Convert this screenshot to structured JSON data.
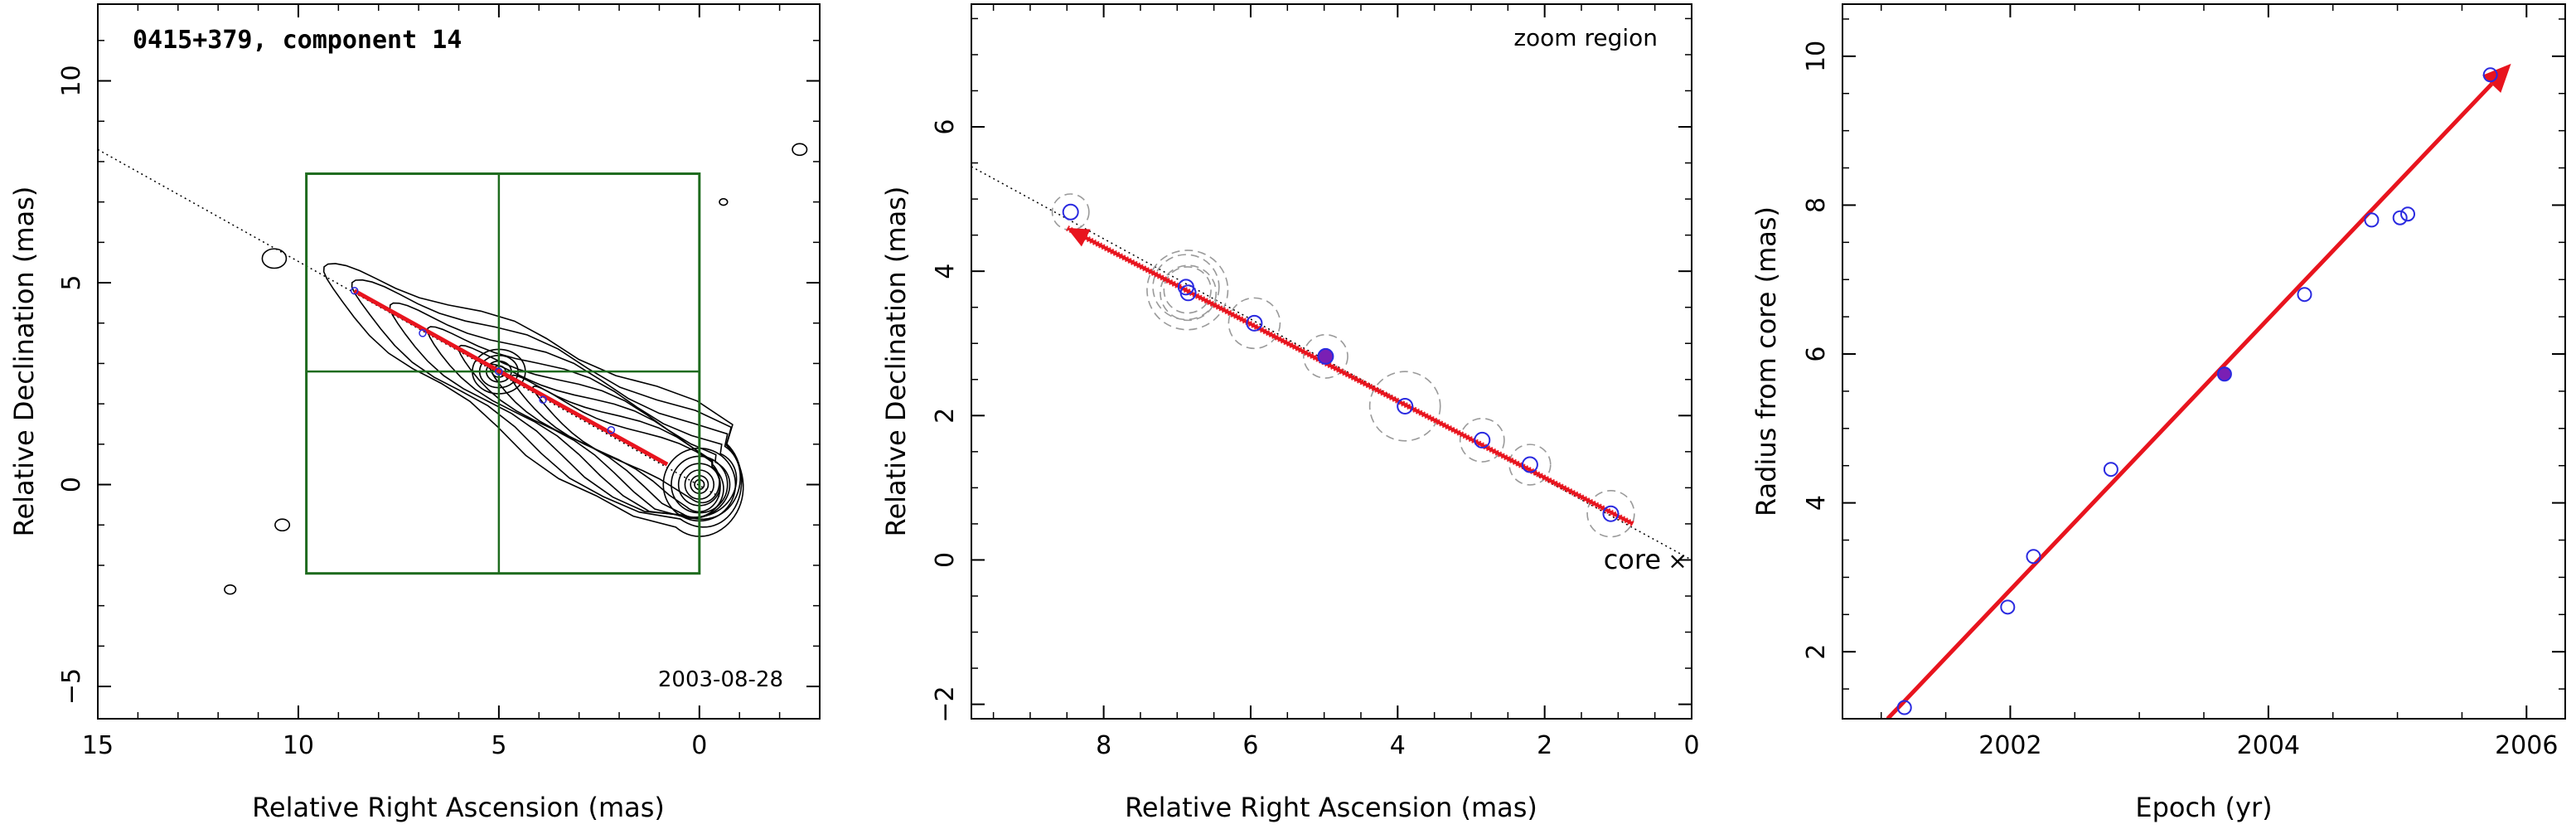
{
  "chart_data": [
    {
      "type": "contour",
      "title": "0415+379, component 14",
      "date_label": "2003-08-28",
      "xlabel": "Relative Right Ascension (mas)",
      "ylabel": "Relative Declination (mas)",
      "xlim": [
        15,
        -3
      ],
      "ylim": [
        -5.8,
        11.9
      ],
      "xticks": [
        15,
        10,
        5,
        0
      ],
      "yticks": [
        -5,
        0,
        5,
        10
      ],
      "contour_center": [
        0,
        0
      ],
      "zoom_box": {
        "x": [
          9.8,
          0
        ],
        "y": [
          -2.2,
          7.7
        ],
        "cross": [
          5,
          2.8
        ]
      },
      "trajectory": {
        "from": [
          0.8,
          0.5
        ],
        "to": [
          8.6,
          4.8
        ]
      },
      "position_markers": [
        [
          8.6,
          4.8
        ],
        [
          6.9,
          3.75
        ],
        [
          5.0,
          2.8
        ],
        [
          3.9,
          2.1
        ],
        [
          2.2,
          1.35
        ]
      ],
      "colors": {
        "box": "#1e6b1e",
        "trajectory": "#e8141e",
        "markers": "#2a2ae0",
        "contours": "#000000"
      }
    },
    {
      "type": "scatter",
      "title": "",
      "annotation": "zoom region",
      "core_label": "core",
      "core_marker": "×",
      "xlabel": "Relative Right Ascension (mas)",
      "ylabel": "Relative Declination (mas)",
      "xlim": [
        9.8,
        0
      ],
      "ylim": [
        -2.2,
        7.7
      ],
      "xticks": [
        8,
        6,
        4,
        2,
        0
      ],
      "yticks": [
        -2,
        0,
        2,
        4,
        6
      ],
      "points": [
        {
          "x": 8.45,
          "y": 4.82,
          "err": 0.25
        },
        {
          "x": 6.88,
          "y": 3.78,
          "err": 0.45
        },
        {
          "x": 6.85,
          "y": 3.7,
          "err": 0.38
        },
        {
          "x": 5.95,
          "y": 3.28,
          "err": 0.35
        },
        {
          "x": 4.98,
          "y": 2.82,
          "err": 0.3,
          "highlight": true
        },
        {
          "x": 3.9,
          "y": 2.13,
          "err": 0.48
        },
        {
          "x": 2.85,
          "y": 1.66,
          "err": 0.3
        },
        {
          "x": 2.2,
          "y": 1.32,
          "err": 0.28
        },
        {
          "x": 1.1,
          "y": 0.64,
          "err": 0.32
        }
      ],
      "trajectory": {
        "from": [
          0.8,
          0.5
        ],
        "to": [
          8.5,
          4.6
        ]
      },
      "colors": {
        "points": "#2a2ae0",
        "highlight_fill": "#7a1fb4",
        "error_circles": "#9a9a9a",
        "trajectory": "#e8141e"
      }
    },
    {
      "type": "scatter",
      "title": "",
      "xlabel": "Epoch (yr)",
      "ylabel": "Radius from core (mas)",
      "xlim": [
        2000.7,
        2006.3
      ],
      "ylim": [
        1.1,
        10.7
      ],
      "xticks": [
        2002,
        2004,
        2006
      ],
      "yticks": [
        2,
        4,
        6,
        8,
        10
      ],
      "points": [
        {
          "x": 2001.18,
          "y": 1.25
        },
        {
          "x": 2001.98,
          "y": 2.6
        },
        {
          "x": 2002.18,
          "y": 3.28
        },
        {
          "x": 2002.78,
          "y": 4.45
        },
        {
          "x": 2003.66,
          "y": 5.73,
          "highlight": true
        },
        {
          "x": 2004.28,
          "y": 6.8
        },
        {
          "x": 2004.8,
          "y": 7.8
        },
        {
          "x": 2005.02,
          "y": 7.83
        },
        {
          "x": 2005.08,
          "y": 7.88
        },
        {
          "x": 2005.72,
          "y": 9.75
        }
      ],
      "fit_line": {
        "from": [
          2001.05,
          1.1
        ],
        "to": [
          2005.88,
          9.9
        ]
      },
      "colors": {
        "points": "#2a2ae0",
        "highlight_fill": "#7a1fb4",
        "fit": "#e8141e"
      }
    }
  ]
}
